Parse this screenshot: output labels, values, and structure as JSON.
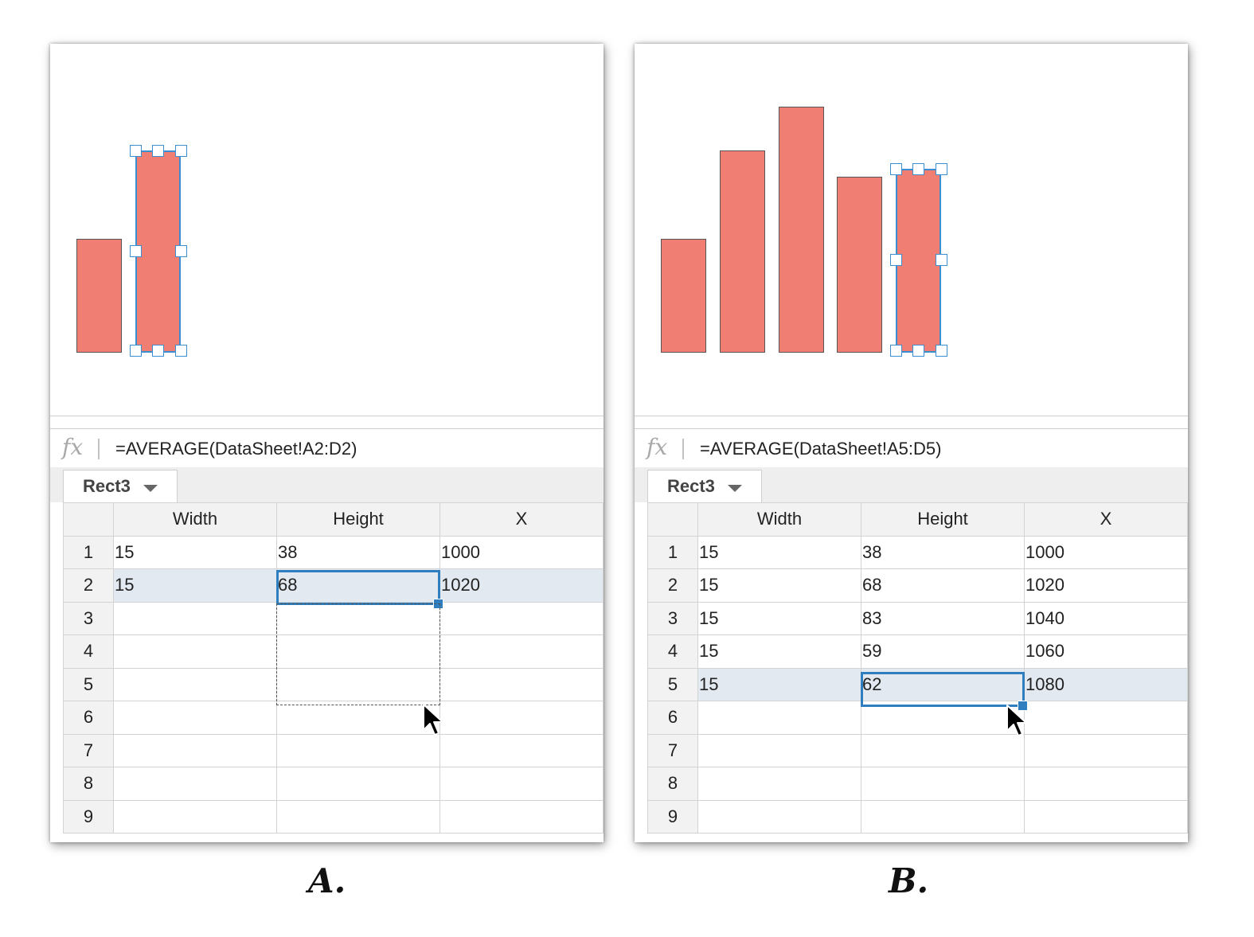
{
  "panels": [
    {
      "caption": "A.",
      "formula_icon": "fx",
      "formula": "=AVERAGE(DataSheet!A2:D2)",
      "tab_label": "Rect3",
      "headers": [
        "Width",
        "Height",
        "X"
      ],
      "row_numbers": [
        "1",
        "2",
        "3",
        "4",
        "5",
        "6",
        "7",
        "8",
        "9"
      ],
      "rows": [
        [
          "15",
          "38",
          "1000"
        ],
        [
          "15",
          "68",
          "1020"
        ],
        [
          "",
          "",
          ""
        ],
        [
          "",
          "",
          ""
        ],
        [
          "",
          "",
          ""
        ],
        [
          "",
          "",
          ""
        ],
        [
          "",
          "",
          ""
        ],
        [
          "",
          "",
          ""
        ],
        [
          "",
          "",
          ""
        ]
      ],
      "bar_heights": [
        38,
        68
      ],
      "selected_bar_index": 1,
      "highlighted_row_index": 1
    },
    {
      "caption": "B.",
      "formula_icon": "fx",
      "formula": "=AVERAGE(DataSheet!A5:D5)",
      "tab_label": "Rect3",
      "headers": [
        "Width",
        "Height",
        "X"
      ],
      "row_numbers": [
        "1",
        "2",
        "3",
        "4",
        "5",
        "6",
        "7",
        "8",
        "9"
      ],
      "rows": [
        [
          "15",
          "38",
          "1000"
        ],
        [
          "15",
          "68",
          "1020"
        ],
        [
          "15",
          "83",
          "1040"
        ],
        [
          "15",
          "59",
          "1060"
        ],
        [
          "15",
          "62",
          "1080"
        ],
        [
          "",
          "",
          ""
        ],
        [
          "",
          "",
          ""
        ],
        [
          "",
          "",
          ""
        ],
        [
          "",
          "",
          ""
        ]
      ],
      "bar_heights": [
        38,
        68,
        83,
        59,
        62
      ],
      "selected_bar_index": 4,
      "highlighted_row_index": 4
    }
  ],
  "colors": {
    "bar": "#f07e72",
    "selection": "#3b8fd0",
    "row_highlight": "#e3e9f0"
  },
  "icons": {
    "function": "fx-icon",
    "dropdown": "caret-down-icon",
    "pointer": "mouse-pointer-icon"
  }
}
